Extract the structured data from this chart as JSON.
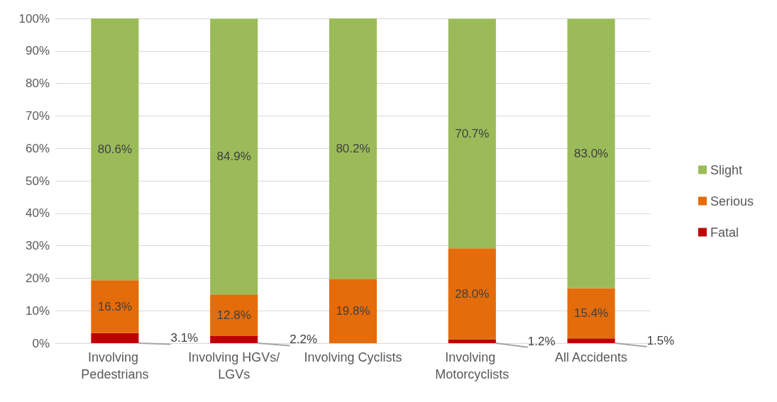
{
  "chart_data": {
    "type": "bar",
    "stacked": true,
    "categories": [
      "Involving Pedestrians",
      "Involving HGVs/LGVs",
      "Involving Cyclists",
      "Involving Motorcyclists",
      "All Accidents"
    ],
    "series": [
      {
        "name": "Fatal",
        "color": "#c00000",
        "values": [
          3.1,
          2.2,
          null,
          1.2,
          1.5
        ],
        "value_labels": [
          "3.1%",
          "2.2%",
          null,
          "1.2%",
          "1.5%"
        ]
      },
      {
        "name": "Serious",
        "color": "#e46c0a",
        "values": [
          16.3,
          12.8,
          19.8,
          28.0,
          15.4
        ],
        "value_labels": [
          "16.3%",
          "12.8%",
          "19.8%",
          "28.0%",
          "15.4%"
        ]
      },
      {
        "name": "Slight",
        "color": "#9bbb59",
        "values": [
          80.6,
          84.9,
          80.2,
          70.7,
          83.0
        ],
        "value_labels": [
          "80.6%",
          "84.9%",
          "80.2%",
          "70.7%",
          "83.0%"
        ]
      }
    ],
    "ylim": [
      0,
      100
    ],
    "yticks": [
      {
        "value": 0,
        "label": "0%"
      },
      {
        "value": 10,
        "label": "10%"
      },
      {
        "value": 20,
        "label": "20%"
      },
      {
        "value": 30,
        "label": "30%"
      },
      {
        "value": 40,
        "label": "40%"
      },
      {
        "value": 50,
        "label": "50%"
      },
      {
        "value": 60,
        "label": "60%"
      },
      {
        "value": 70,
        "label": "70%"
      },
      {
        "value": 80,
        "label": "80%"
      },
      {
        "value": 90,
        "label": "90%"
      },
      {
        "value": 100,
        "label": "100%"
      }
    ],
    "grid": "y",
    "legend": "right"
  }
}
